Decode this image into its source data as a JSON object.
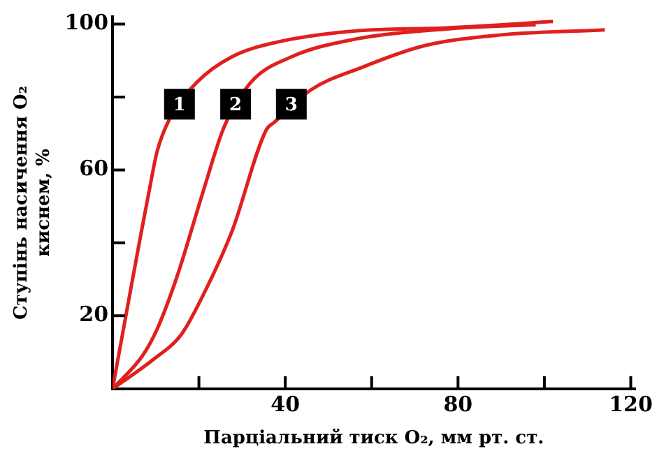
{
  "chart_data": {
    "type": "line",
    "xlabel": "Парціальний тиск O₂, мм рт. ст.",
    "ylabel": "Ступінь насичення O₂\nкиснем, %",
    "xlim": [
      0,
      121
    ],
    "ylim": [
      0,
      102
    ],
    "xticks": [
      {
        "value": 20,
        "label": null
      },
      40,
      {
        "value": 60,
        "label": null
      },
      80,
      {
        "value": 100,
        "label": null
      },
      120
    ],
    "yticks": [
      20,
      {
        "value": 40,
        "label": null
      },
      60,
      {
        "value": 80,
        "label": null
      },
      100
    ],
    "legend": false,
    "marker": "none",
    "line_style": "solid",
    "series": [
      {
        "color": "#e0201e",
        "x": [
          0,
          2.9,
          6.3,
          8.6,
          10.3,
          13.2,
          19.5,
          27.6,
          37.9,
          55,
          78,
          102
        ],
        "values": [
          0,
          18.8,
          40.7,
          55,
          65,
          74,
          84,
          91,
          95,
          98,
          99,
          100.7
        ]
      },
      {
        "color": "#e0201e",
        "x": [
          0,
          6.9,
          10.3,
          15,
          20.7,
          25.9,
          32,
          41.4,
          55,
          78,
          98
        ],
        "values": [
          0,
          9,
          16.3,
          31,
          53,
          72,
          84,
          91,
          95.6,
          98.7,
          99.8
        ]
      },
      {
        "color": "#e0201e",
        "x": [
          0,
          9.2,
          16,
          20.7,
          27.6,
          35.6,
          37.4,
          46,
          57.5,
          72,
          89.7,
          114
        ],
        "values": [
          0,
          7.8,
          15,
          25,
          43,
          71,
          73,
          82,
          88,
          94,
          97,
          98.4
        ]
      }
    ],
    "annotations": [
      {
        "text": "1",
        "x": 15.5,
        "y": 78
      },
      {
        "text": "2",
        "x": 28.5,
        "y": 78
      },
      {
        "text": "3",
        "x": 41.4,
        "y": 78
      }
    ]
  }
}
